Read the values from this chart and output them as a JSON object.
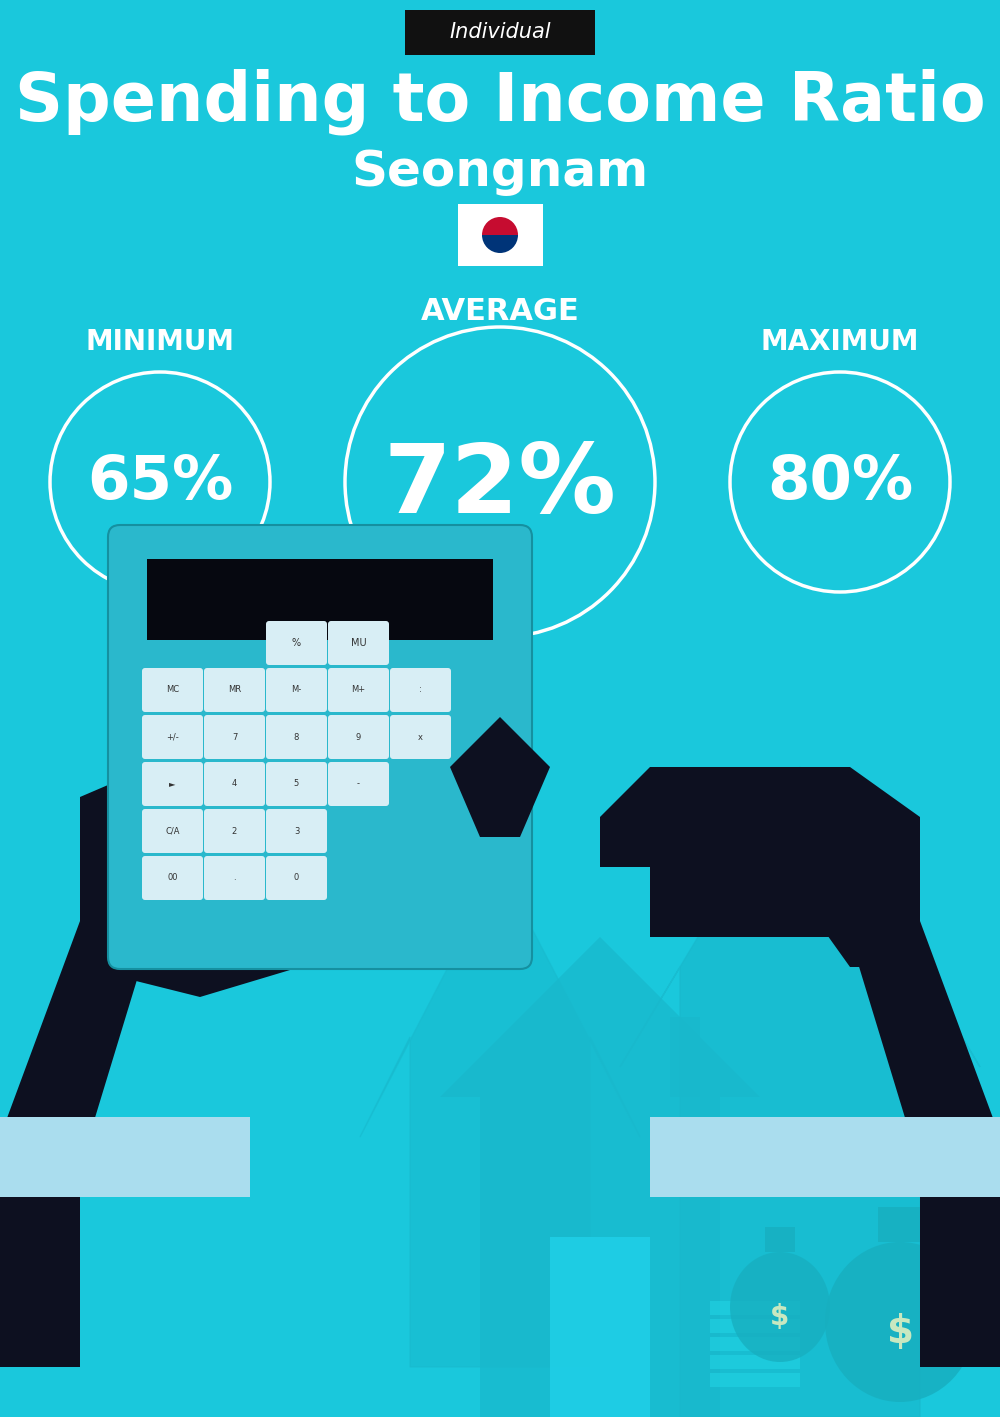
{
  "title": "Spending to Income Ratio",
  "subtitle": "Seongnam",
  "label_tag": "Individual",
  "bg_color": "#1ac8dc",
  "min_label": "MINIMUM",
  "avg_label": "AVERAGE",
  "max_label": "MAXIMUM",
  "min_value": "65%",
  "avg_value": "72%",
  "max_value": "80%",
  "text_color": "white",
  "tag_bg": "#111111",
  "tag_text_color": "white",
  "arrow_color": "#18b8cc",
  "house_color": "#18b8cc",
  "calc_color": "#2ab8cc",
  "hand_color": "#0d1020",
  "cuff_color": "#aaddee",
  "screen_color": "#060810",
  "btn_color": "#d8eef5",
  "btn_text_color": "#333333",
  "money_color": "#17afc0",
  "dollar_color": "#c8e8c0"
}
